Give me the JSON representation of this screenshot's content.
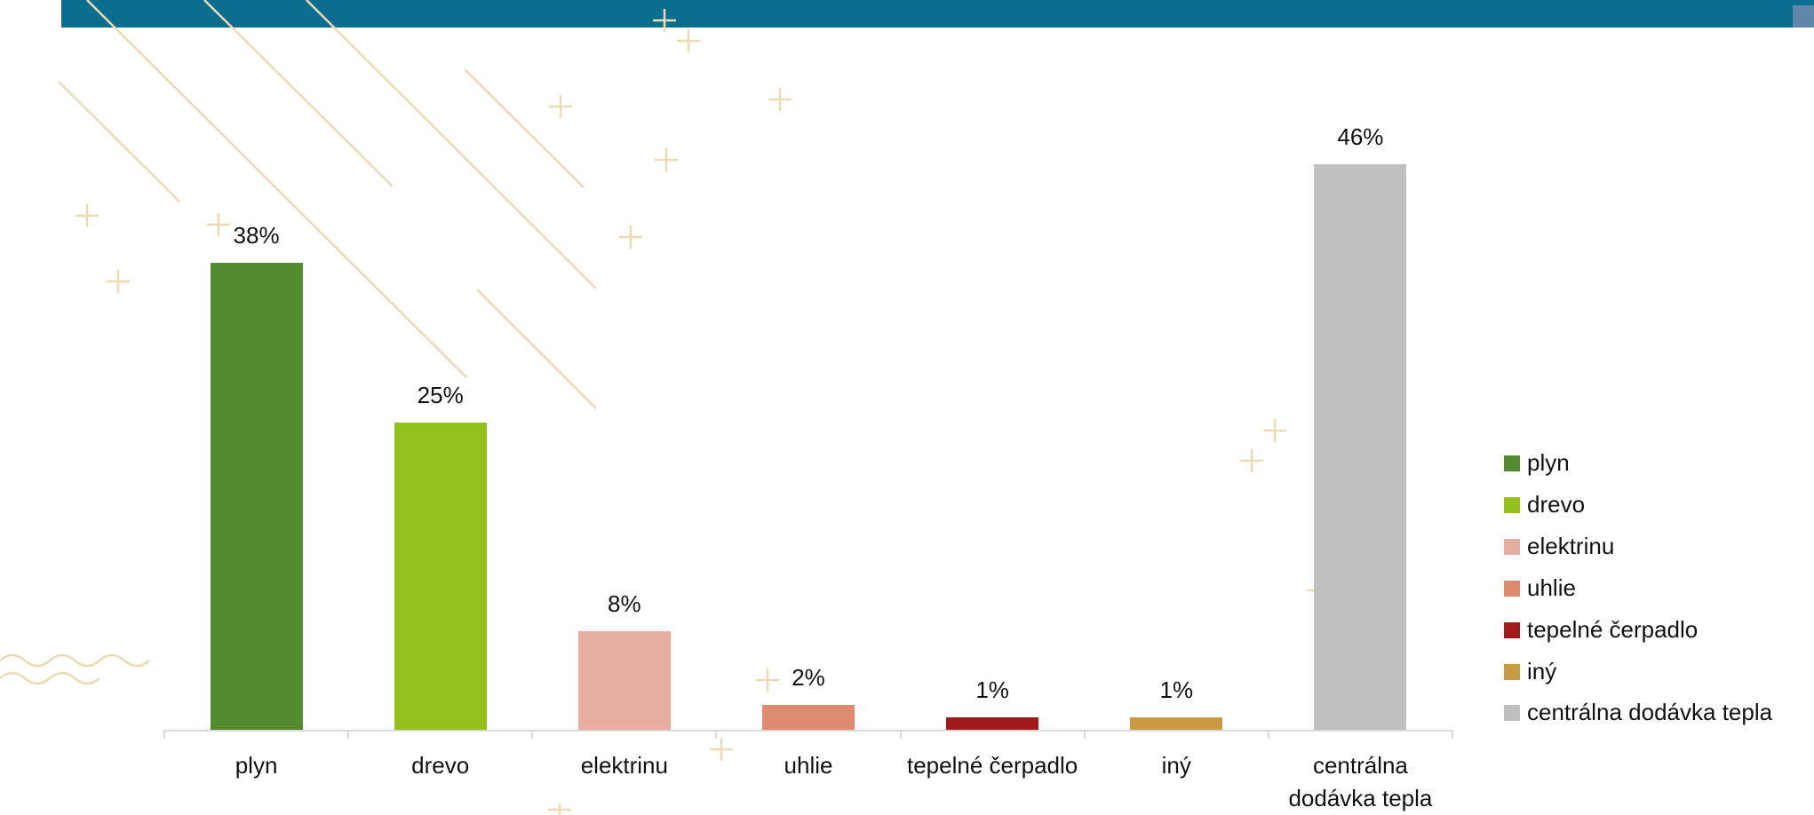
{
  "chart_data": {
    "type": "bar",
    "categories": [
      "plyn",
      "drevo",
      "elektrinu",
      "uhlie",
      "tepelné čerpadlo",
      "iný",
      "centrálna dodávka tepla"
    ],
    "values": [
      38,
      25,
      8,
      2,
      1,
      1,
      46
    ],
    "value_labels": [
      "38%",
      "25%",
      "8%",
      "2%",
      "1%",
      "1%",
      "46%"
    ],
    "colors": [
      "#548b31",
      "#93c01f",
      "#e6ada0",
      "#dc8b6e",
      "#a31a1a",
      "#c99a44",
      "#bfbfbf"
    ],
    "legend": "right"
  }
}
